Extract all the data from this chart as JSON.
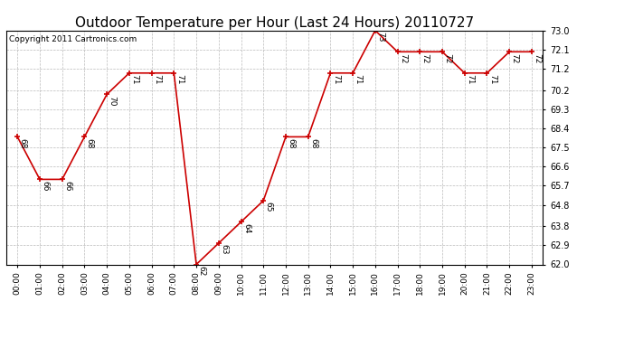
{
  "title": "Outdoor Temperature per Hour (Last 24 Hours) 20110727",
  "copyright": "Copyright 2011 Cartronics.com",
  "hours": [
    "00:00",
    "01:00",
    "02:00",
    "03:00",
    "04:00",
    "05:00",
    "06:00",
    "07:00",
    "08:00",
    "09:00",
    "10:00",
    "11:00",
    "12:00",
    "13:00",
    "14:00",
    "15:00",
    "16:00",
    "17:00",
    "18:00",
    "19:00",
    "20:00",
    "21:00",
    "22:00",
    "23:00"
  ],
  "temps": [
    68,
    66,
    66,
    68,
    70,
    71,
    71,
    71,
    62,
    63,
    64,
    65,
    68,
    68,
    71,
    71,
    73,
    72,
    72,
    72,
    71,
    71,
    72,
    72
  ],
  "ylim_min": 62.0,
  "ylim_max": 73.0,
  "yticks": [
    62.0,
    62.9,
    63.8,
    64.8,
    65.7,
    66.6,
    67.5,
    68.4,
    69.3,
    70.2,
    71.2,
    72.1,
    73.0
  ],
  "line_color": "#cc0000",
  "marker_color": "#cc0000",
  "bg_color": "#ffffff",
  "grid_color": "#bbbbbb",
  "title_fontsize": 11,
  "annotation_fontsize": 6.5,
  "copyright_fontsize": 6.5,
  "xtick_fontsize": 6.5,
  "ytick_fontsize": 7
}
